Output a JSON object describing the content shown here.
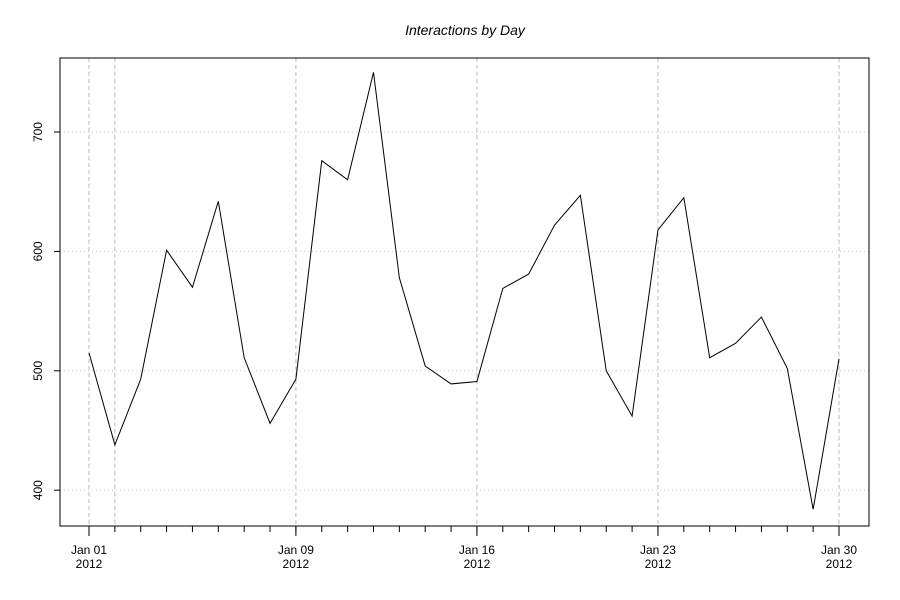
{
  "chart_data": {
    "type": "line",
    "title": "Interactions by Day",
    "xlabel": "",
    "ylabel": "",
    "x": [
      "2012-01-01",
      "2012-01-02",
      "2012-01-03",
      "2012-01-04",
      "2012-01-05",
      "2012-01-06",
      "2012-01-07",
      "2012-01-08",
      "2012-01-09",
      "2012-01-10",
      "2012-01-11",
      "2012-01-12",
      "2012-01-13",
      "2012-01-14",
      "2012-01-15",
      "2012-01-16",
      "2012-01-17",
      "2012-01-18",
      "2012-01-19",
      "2012-01-20",
      "2012-01-21",
      "2012-01-22",
      "2012-01-23",
      "2012-01-24",
      "2012-01-25",
      "2012-01-26",
      "2012-01-27",
      "2012-01-28",
      "2012-01-29",
      "2012-01-30"
    ],
    "series": [
      {
        "values": [
          515,
          438,
          493,
          601,
          570,
          642,
          511,
          456,
          493,
          676,
          660,
          750,
          578,
          504,
          489,
          491,
          569,
          581,
          622,
          647,
          500,
          462,
          618,
          645,
          511,
          523,
          545,
          502,
          384,
          510
        ]
      }
    ],
    "xlim": [
      "2012-01-01",
      "2012-01-30"
    ],
    "ylim": [
      370,
      762
    ],
    "y_ticks": [
      400,
      500,
      600,
      700
    ],
    "x_ticks": [
      {
        "date": "2012-01-01",
        "label": "Jan 01",
        "year": "2012"
      },
      {
        "date": "2012-01-09",
        "label": "Jan 09",
        "year": "2012"
      },
      {
        "date": "2012-01-16",
        "label": "Jan 16",
        "year": "2012"
      },
      {
        "date": "2012-01-23",
        "label": "Jan 23",
        "year": "2012"
      },
      {
        "date": "2012-01-30",
        "label": "Jan 30",
        "year": "2012"
      }
    ],
    "vertical_grid_dates": [
      "2012-01-01",
      "2012-01-02",
      "2012-01-09",
      "2012-01-16",
      "2012-01-23",
      "2012-01-30"
    ],
    "grid": true,
    "line_color": "#000000"
  }
}
